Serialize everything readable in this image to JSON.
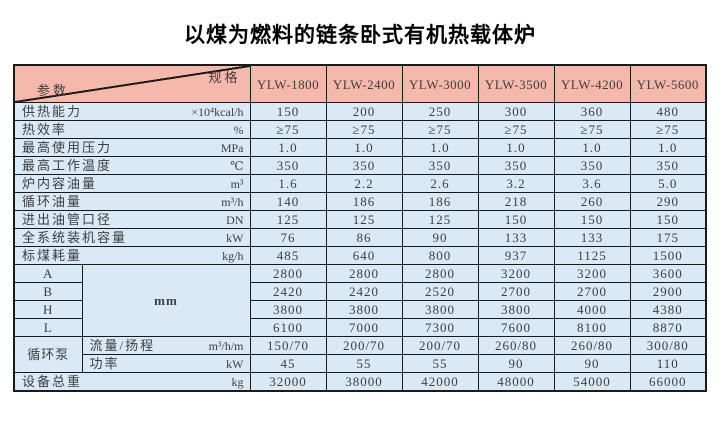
{
  "title": "以煤为燃料的链条卧式有机热载体炉",
  "colors": {
    "header_bg": "#f5b9ab",
    "cell_bg": "#d9eaf6",
    "border": "#1a1a1a",
    "text": "#3e3e3e"
  },
  "table": {
    "corner": {
      "top_right_label": "规格",
      "bottom_left_label": "参数"
    },
    "models": [
      "YLW-1800",
      "YLW-2400",
      "YLW-3000",
      "YLW-3500",
      "YLW-4200",
      "YLW-5600"
    ],
    "param_rows": [
      {
        "label": "供热能力",
        "unit": "×10⁴kcal/h",
        "values": [
          "150",
          "200",
          "250",
          "300",
          "360",
          "480"
        ]
      },
      {
        "label": "热效率",
        "unit": "%",
        "values": [
          "≥75",
          "≥75",
          "≥75",
          "≥75",
          "≥75",
          "≥75"
        ]
      },
      {
        "label": "最高使用压力",
        "unit": "MPa",
        "values": [
          "1.0",
          "1.0",
          "1.0",
          "1.0",
          "1.0",
          "1.0"
        ]
      },
      {
        "label": "最高工作温度",
        "unit": "℃",
        "values": [
          "350",
          "350",
          "350",
          "350",
          "350",
          "350"
        ]
      },
      {
        "label": "炉内容油量",
        "unit": "m³",
        "values": [
          "1.6",
          "2.2",
          "2.6",
          "3.2",
          "3.6",
          "5.0"
        ]
      },
      {
        "label": "循环油量",
        "unit": "m³/h",
        "values": [
          "140",
          "186",
          "186",
          "218",
          "260",
          "290"
        ]
      },
      {
        "label": "进出油管口径",
        "unit": "DN",
        "values": [
          "125",
          "125",
          "125",
          "150",
          "150",
          "150"
        ]
      },
      {
        "label": "全系统装机容量",
        "unit": "kW",
        "values": [
          "76",
          "86",
          "90",
          "133",
          "133",
          "175"
        ]
      },
      {
        "label": "标煤耗量",
        "unit": "kg/h",
        "values": [
          "485",
          "640",
          "800",
          "937",
          "1125",
          "1500"
        ]
      }
    ],
    "dimension_group": {
      "unit": "mm",
      "rows": [
        {
          "label": "A",
          "values": [
            "2800",
            "2800",
            "2800",
            "3200",
            "3200",
            "3600"
          ]
        },
        {
          "label": "B",
          "values": [
            "2420",
            "2420",
            "2520",
            "2700",
            "2700",
            "2900"
          ]
        },
        {
          "label": "H",
          "values": [
            "3800",
            "3800",
            "3800",
            "3800",
            "4000",
            "4380"
          ]
        },
        {
          "label": "L",
          "values": [
            "6100",
            "7000",
            "7300",
            "7600",
            "8100",
            "8870"
          ]
        }
      ]
    },
    "pump_group": {
      "label": "循环泵",
      "rows": [
        {
          "label": "流量/扬程",
          "unit": "m³/h/m",
          "values": [
            "150/70",
            "200/70",
            "200/70",
            "260/80",
            "260/80",
            "300/80"
          ]
        },
        {
          "label": "功率",
          "unit": "kW",
          "values": [
            "45",
            "55",
            "55",
            "90",
            "90",
            "110"
          ]
        }
      ]
    },
    "total_row": {
      "label": "设备总重",
      "unit": "kg",
      "values": [
        "32000",
        "38000",
        "42000",
        "48000",
        "54000",
        "66000"
      ]
    }
  }
}
